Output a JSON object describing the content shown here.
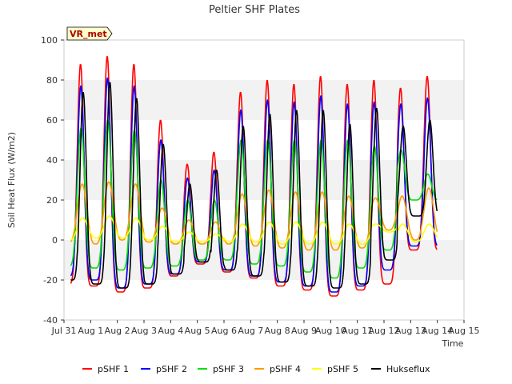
{
  "chart_data": {
    "type": "line",
    "title": "Peltier SHF Plates",
    "xlabel": "Time",
    "ylabel": "Soil Heat Flux (W/m2)",
    "ylim": [
      -40,
      100
    ],
    "yticks": [
      -40,
      -20,
      0,
      20,
      40,
      60,
      80,
      100
    ],
    "xlim": [
      0,
      15
    ],
    "xtick_labels": [
      "Jul 31",
      "Aug 1",
      "Aug 2",
      "Aug 3",
      "Aug 4",
      "Aug 5",
      "Aug 6",
      "Aug 7",
      "Aug 8",
      "Aug 9",
      "Aug 10",
      "Aug 11",
      "Aug 12",
      "Aug 13",
      "Aug 14",
      "Aug 15"
    ],
    "x_unit": "days since Jul 31 00:00",
    "grid": "horizontal bands",
    "legend_position": "bottom",
    "annotation": "VR_met",
    "series": [
      {
        "name": "pSHF 1",
        "color": "#ff0000",
        "daily_max": [
          88,
          92,
          88,
          60,
          38,
          44,
          74,
          80,
          78,
          82,
          78,
          80,
          76,
          82
        ],
        "daily_min": [
          -22,
          -23,
          -26,
          -24,
          -18,
          -12,
          -16,
          -19,
          -23,
          -25,
          -28,
          -25,
          -22,
          -5
        ]
      },
      {
        "name": "pSHF 2",
        "color": "#0000ff",
        "daily_max": [
          77,
          81,
          77,
          50,
          31,
          35,
          65,
          70,
          69,
          72,
          68,
          69,
          68,
          71
        ],
        "daily_min": [
          -18,
          -20,
          -24,
          -22,
          -17,
          -11,
          -15,
          -18,
          -21,
          -23,
          -26,
          -23,
          -15,
          -3
        ]
      },
      {
        "name": "pSHF 3",
        "color": "#00dd00",
        "daily_max": [
          56,
          60,
          55,
          30,
          20,
          20,
          50,
          50,
          50,
          50,
          50,
          47,
          45,
          33
        ],
        "daily_min": [
          -13,
          -14,
          -15,
          -14,
          -13,
          -10,
          -10,
          -12,
          -13,
          -16,
          -19,
          -14,
          -5,
          20
        ]
      },
      {
        "name": "pSHF 4",
        "color": "#ff9900",
        "daily_max": [
          28,
          29,
          28,
          16,
          10,
          9,
          23,
          25,
          24,
          24,
          22,
          21,
          22,
          26
        ],
        "daily_min": [
          -1,
          -2,
          0,
          -1,
          -2,
          -2,
          -2,
          -3,
          -4,
          -5,
          -5,
          -4,
          5,
          0
        ]
      },
      {
        "name": "pSHF 5",
        "color": "#ffff00",
        "daily_max": [
          11,
          12,
          11,
          7,
          4,
          3,
          8,
          9,
          9,
          9,
          8,
          8,
          8,
          8
        ],
        "daily_min": [
          0,
          1,
          1,
          0,
          -1,
          -1,
          -1,
          -1,
          -2,
          -2,
          -2,
          -2,
          4,
          -1
        ]
      },
      {
        "name": "Hukseflux",
        "color": "#000000",
        "daily_max": [
          74,
          79,
          71,
          48,
          28,
          35,
          57,
          63,
          65,
          65,
          58,
          66,
          57,
          60
        ],
        "daily_min": [
          -20,
          -22,
          -24,
          -22,
          -17,
          -11,
          -15,
          -18,
          -21,
          -23,
          -24,
          -22,
          -10,
          12
        ]
      }
    ]
  }
}
